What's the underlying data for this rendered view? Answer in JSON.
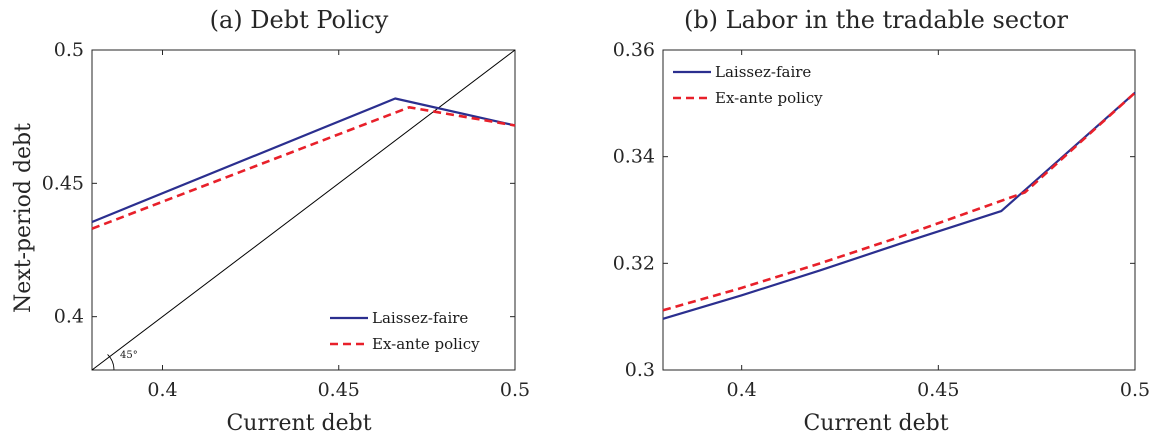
{
  "chart_data": [
    {
      "type": "line",
      "title": "(a) Debt Policy",
      "xlabel": "Current debt",
      "ylabel": "Next-period debt",
      "xlim": [
        0.38,
        0.5
      ],
      "ylim": [
        0.38,
        0.5
      ],
      "xticks": [
        "0.4",
        "0.45",
        "0.5"
      ],
      "yticks": [
        "0.4",
        "0.45",
        "0.5"
      ],
      "xtick_values": [
        0.4,
        0.45,
        0.5
      ],
      "ytick_values": [
        0.4,
        0.45,
        0.5
      ],
      "grid": false,
      "legend_position": "bottom-right",
      "annotation": "45°",
      "reference_line": {
        "x": [
          0.38,
          0.5
        ],
        "y": [
          0.38,
          0.5
        ],
        "color": "#000000"
      },
      "series": [
        {
          "name": "Laissez-faire",
          "color": "#2b2f8f",
          "style": "solid",
          "x": [
            0.38,
            0.466,
            0.5
          ],
          "y": [
            0.4355,
            0.4818,
            0.4717
          ]
        },
        {
          "name": "Ex-ante policy",
          "color": "#e8202a",
          "style": "dashed",
          "x": [
            0.38,
            0.47,
            0.5
          ],
          "y": [
            0.433,
            0.4785,
            0.4717
          ]
        }
      ]
    },
    {
      "type": "line",
      "title": "(b) Labor in the tradable sector",
      "xlabel": "Current debt",
      "ylabel": "",
      "xlim": [
        0.38,
        0.5
      ],
      "ylim": [
        0.3,
        0.36
      ],
      "xticks": [
        "0.4",
        "0.45",
        "0.5"
      ],
      "yticks": [
        "0.3",
        "0.32",
        "0.34",
        "0.36"
      ],
      "xtick_values": [
        0.4,
        0.45,
        0.5
      ],
      "ytick_values": [
        0.3,
        0.32,
        0.34,
        0.36
      ],
      "grid": false,
      "legend_position": "top-left",
      "series": [
        {
          "name": "Laissez-faire",
          "color": "#2b2f8f",
          "style": "solid",
          "x": [
            0.38,
            0.4,
            0.42,
            0.44,
            0.466,
            0.5
          ],
          "y": [
            0.3096,
            0.314,
            0.3187,
            0.3236,
            0.3298,
            0.352
          ]
        },
        {
          "name": "Ex-ante policy",
          "color": "#e8202a",
          "style": "dashed",
          "x": [
            0.38,
            0.4,
            0.42,
            0.44,
            0.472,
            0.5
          ],
          "y": [
            0.3112,
            0.3154,
            0.32,
            0.3249,
            0.3333,
            0.352
          ]
        }
      ]
    }
  ]
}
